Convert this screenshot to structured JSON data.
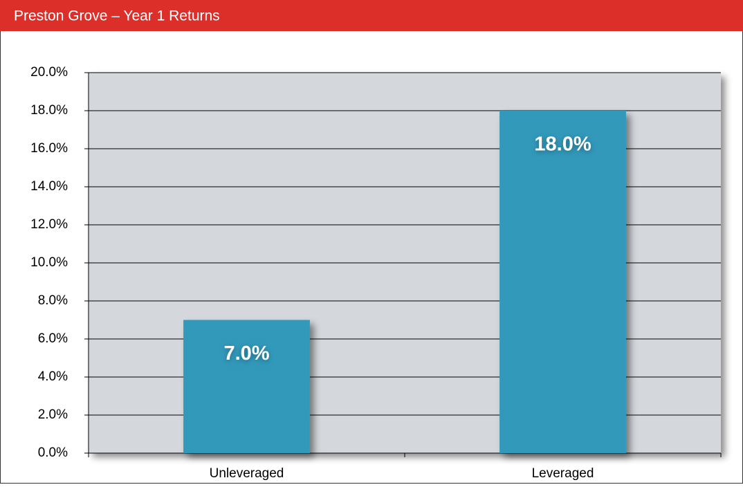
{
  "chart_data": {
    "type": "bar",
    "title": "Preston Grove – Year 1 Returns",
    "categories": [
      "Unleveraged",
      "Leveraged"
    ],
    "values": [
      7,
      18
    ],
    "value_labels": [
      "7.0%",
      "18.0%"
    ],
    "color": "#3399bb",
    "ylim": [
      0,
      20
    ],
    "yticks": [
      {
        "value": 0,
        "label": "0.0%"
      },
      {
        "value": 2,
        "label": "2.0%"
      },
      {
        "value": 4,
        "label": "4.0%"
      },
      {
        "value": 6,
        "label": "6.0%"
      },
      {
        "value": 8,
        "label": "8.0%"
      },
      {
        "value": 10,
        "label": "10.0%"
      },
      {
        "value": 12,
        "label": "12.0%"
      },
      {
        "value": 14,
        "label": "14.0%"
      },
      {
        "value": 16,
        "label": "16.0%"
      },
      {
        "value": 18,
        "label": "18.0%"
      },
      {
        "value": 20,
        "label": "20.0%"
      }
    ],
    "grid": true
  }
}
